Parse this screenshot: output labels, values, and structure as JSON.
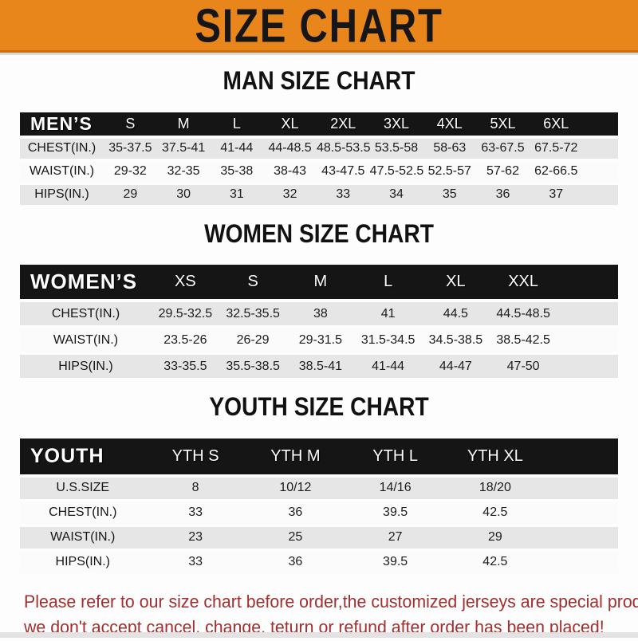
{
  "banner": {
    "title": "SIZE CHART",
    "bg_color": "#E8861C"
  },
  "sections": [
    {
      "heading": "MAN SIZE CHART",
      "header_label": "MEN’S",
      "size_columns": [
        "S",
        "M",
        "L",
        "XL",
        "2XL",
        "3XL",
        "4XL",
        "5XL",
        "6XL"
      ],
      "rows": [
        {
          "label": "CHEST(IN.)",
          "values": [
            "35-37.5",
            "37.5-41",
            "41-44",
            "44-48.5",
            "48.5-53.5",
            "53.5-58",
            "58-63",
            "63-67.5",
            "67.5-72"
          ]
        },
        {
          "label": "WAIST(IN.)",
          "values": [
            "29-32",
            "32-35",
            "35-38",
            "38-43",
            "43-47.5",
            "47.5-52.5",
            "52.5-57",
            "57-62",
            "62-66.5"
          ]
        },
        {
          "label": "HIPS(IN.)",
          "values": [
            "29",
            "30",
            "31",
            "32",
            "33",
            "34",
            "35",
            "36",
            "37"
          ]
        }
      ]
    },
    {
      "heading": "WOMEN SIZE CHART",
      "header_label": "WOMEN’S",
      "size_columns": [
        "XS",
        "S",
        "M",
        "L",
        "XL",
        "XXL"
      ],
      "rows": [
        {
          "label": "CHEST(IN.)",
          "values": [
            "29.5-32.5",
            "32.5-35.5",
            "38",
            "41",
            "44.5",
            "44.5-48.5"
          ]
        },
        {
          "label": "WAIST(IN.)",
          "values": [
            "23.5-26",
            "26-29",
            "29-31.5",
            "31.5-34.5",
            "34.5-38.5",
            "38.5-42.5"
          ]
        },
        {
          "label": "HIPS(IN.)",
          "values": [
            "33-35.5",
            "35.5-38.5",
            "38.5-41",
            "41-44",
            "44-47",
            "47-50"
          ]
        }
      ]
    },
    {
      "heading": "YOUTH SIZE CHART",
      "header_label": "YOUTH",
      "size_columns": [
        "YTH S",
        "YTH M",
        "YTH L",
        "YTH XL"
      ],
      "rows": [
        {
          "label": "U.S.SIZE",
          "values": [
            "8",
            "10/12",
            "14/16",
            "18/20"
          ]
        },
        {
          "label": "CHEST(IN.)",
          "values": [
            "33",
            "36",
            "39.5",
            "42.5"
          ]
        },
        {
          "label": "WAIST(IN.)",
          "values": [
            "23",
            "25",
            "27",
            "29"
          ]
        },
        {
          "label": "HIPS(IN.)",
          "values": [
            "33",
            "36",
            "39.5",
            "42.5"
          ]
        }
      ]
    }
  ],
  "footer": {
    "line1": "Please refer to our size chart before order,the customized jerseys are special products,",
    "line2": "we don't accept cancel, change, teturn or refund after order has been placed!",
    "text_color": "#A32E2E"
  }
}
